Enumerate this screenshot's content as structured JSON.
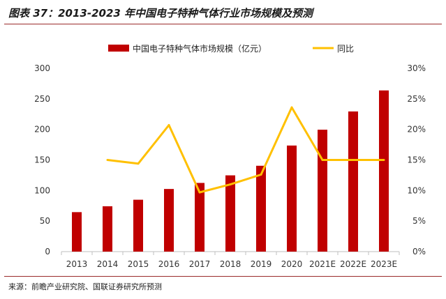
{
  "figure_title": "图表 37：2013-2023 年中国电子特种气体行业市场规模及预测",
  "source": "来源：前瞻产业研究院、国联证券研究所预测",
  "chart_data": {
    "type": "bar",
    "categories": [
      "2013",
      "2014",
      "2015",
      "2016",
      "2017",
      "2018",
      "2019",
      "2020",
      "2021E",
      "2022E",
      "2023E"
    ],
    "series": [
      {
        "name": "中国电子特种气体市场规模（亿元）",
        "type": "bar",
        "axis": "left",
        "values": [
          64.6,
          74.2,
          84.9,
          102.5,
          112.4,
          124.8,
          140.5,
          173.6,
          199.5,
          229.4,
          263.8
        ]
      },
      {
        "name": "同比",
        "type": "line",
        "axis": "right",
        "values": [
          null,
          15.0,
          14.4,
          20.7,
          9.7,
          11.0,
          12.6,
          23.6,
          15.0,
          15.0,
          15.0
        ]
      }
    ],
    "y_left": {
      "ylim": [
        0,
        300
      ],
      "ticks": [
        "0",
        "50",
        "100",
        "150",
        "200",
        "250",
        "300"
      ]
    },
    "y_right": {
      "ylim": [
        0,
        30
      ],
      "ticks": [
        "0%",
        "5%",
        "10%",
        "15%",
        "20%",
        "25%",
        "30%"
      ]
    },
    "legend_position": "top",
    "grid": false,
    "colors": {
      "bar": "#c00000",
      "line": "#ffc000"
    }
  }
}
